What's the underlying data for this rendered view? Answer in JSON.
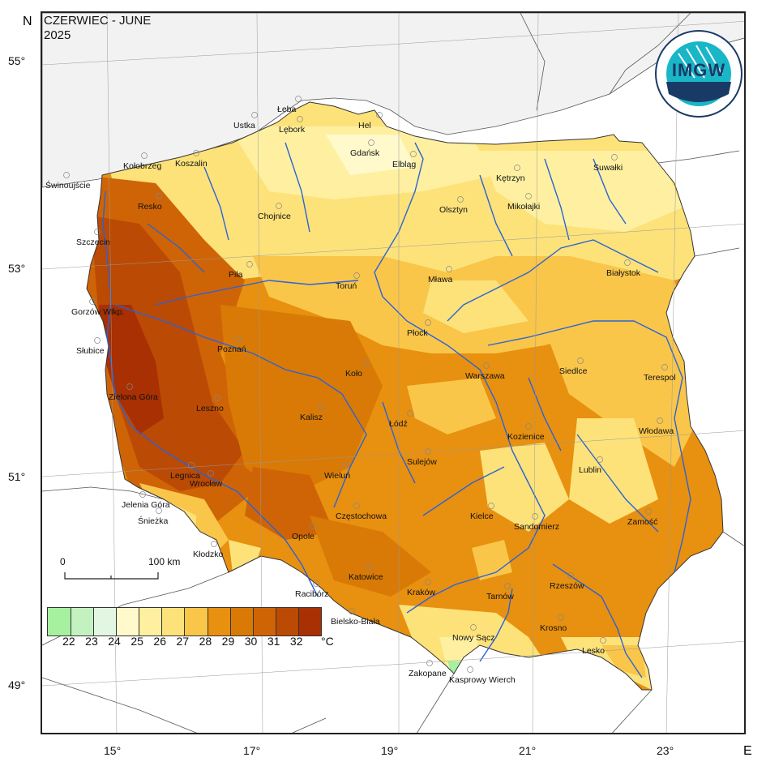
{
  "title": {
    "line1": "CZERWIEC - JUNE",
    "line2": "2025"
  },
  "compass": {
    "north": "N",
    "east": "E"
  },
  "logo": {
    "text": "IMGW",
    "ring_text": "INSTYTUT METEOROLOGII I GOSPODARKI WODNEJ · PAŃSTWOWY INSTYTUT BADAWCZY",
    "colors": {
      "ring": "#1a3a66",
      "cyan": "#19b6c8"
    }
  },
  "latitude_labels": [
    "55°",
    "53°",
    "51°",
    "49°"
  ],
  "longitude_labels": [
    "15°",
    "17°",
    "19°",
    "21°",
    "23°"
  ],
  "scale_bar": {
    "start": "0",
    "end": "100 km"
  },
  "legend": {
    "unit": "°C",
    "values": [
      "22",
      "23",
      "24",
      "25",
      "26",
      "27",
      "28",
      "29",
      "30",
      "31",
      "32"
    ],
    "colors": [
      "#a6f0a0",
      "#c3f2c0",
      "#e2f6e2",
      "#fff9cc",
      "#fef0a0",
      "#fde27a",
      "#f9c64a",
      "#e8900f",
      "#d97a06",
      "#cf6406",
      "#bb4a05",
      "#a83002"
    ]
  },
  "cities": [
    "Łeba",
    "Ustka",
    "Lębork",
    "Hel",
    "Gdańsk",
    "Elbląg",
    "Kołobrzeg",
    "Koszalin",
    "Świnoujście",
    "Resko",
    "Kętrzyn",
    "Suwałki",
    "Olsztyn",
    "Mikołajki",
    "Chojnice",
    "Szczecin",
    "Piła",
    "Toruń",
    "Mława",
    "Białystok",
    "Gorzów Wlkp.",
    "Płock",
    "Słubice",
    "Poznań",
    "Siedlce",
    "Koło",
    "Warszawa",
    "Terespol",
    "Zielona Góra",
    "Leszno",
    "Kalisz",
    "Łódź",
    "Kozienice",
    "Włodawa",
    "Sulejów",
    "Lublin",
    "Legnica",
    "Wieluń",
    "Wrocław",
    "Jelenia Góra",
    "Śnieżka",
    "Częstochowa",
    "Kielce",
    "Zamość",
    "Sandomierz",
    "Opole",
    "Kłodzko",
    "Katowice",
    "Rzeszów",
    "Racibórz",
    "Kraków",
    "Tarnów",
    "Bielsko-Biała",
    "Krosno",
    "Nowy Sącz",
    "Lesko",
    "Zakopane",
    "Kasprowy Wierch"
  ]
}
